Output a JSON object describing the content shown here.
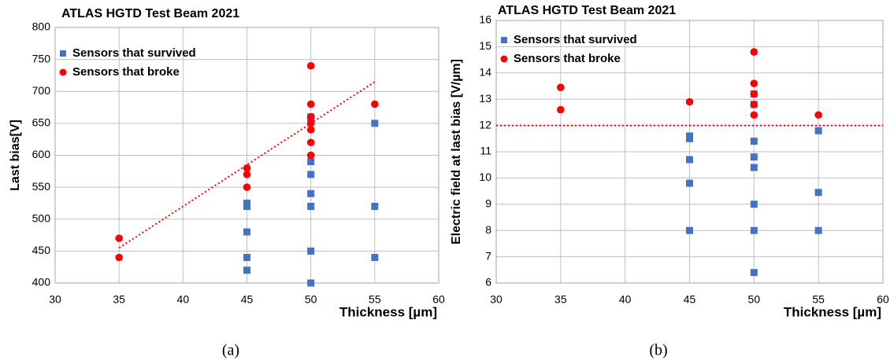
{
  "chart_data": [
    {
      "type": "scatter",
      "title": "ATLAS HGTD Test Beam 2021",
      "x_label": "Thickness [µm]",
      "y_label": "Last bias[V]",
      "caption": "(a)",
      "xlim": [
        30,
        60
      ],
      "xticks": [
        30,
        35,
        40,
        45,
        50,
        55,
        60
      ],
      "ylim": [
        400,
        800
      ],
      "yticks": [
        400,
        450,
        500,
        550,
        600,
        650,
        700,
        750,
        800
      ],
      "grid": true,
      "legend": "upper left",
      "series": [
        {
          "name": "Sensors that survived",
          "color": "#4472c4",
          "marker": "square",
          "x": [
            45,
            45,
            45,
            45,
            45,
            50,
            50,
            50,
            50,
            50,
            50,
            50,
            50,
            55,
            55,
            55
          ],
          "values": [
            525,
            520,
            480,
            440,
            420,
            660,
            655,
            590,
            570,
            540,
            520,
            450,
            400,
            650,
            520,
            440
          ]
        },
        {
          "name": "Sensors that broke",
          "color": "#ff0000",
          "marker": "circle",
          "x": [
            35,
            35,
            45,
            45,
            45,
            50,
            50,
            50,
            50,
            50,
            50,
            50,
            55
          ],
          "values": [
            470,
            440,
            580,
            570,
            550,
            740,
            680,
            660,
            650,
            640,
            620,
            600,
            680
          ]
        }
      ],
      "trendline": {
        "color": "#ff0000",
        "x": [
          35,
          55
        ],
        "values": [
          455,
          715
        ]
      }
    },
    {
      "type": "scatter",
      "title": "ATLAS HGTD Test Beam 2021",
      "x_label": "Thickness [µm]",
      "y_label": "Electric field at last bias [V/µm]",
      "caption": "(b)",
      "xlim": [
        30,
        60
      ],
      "xticks": [
        30,
        35,
        40,
        45,
        50,
        55,
        60
      ],
      "ylim": [
        6,
        16
      ],
      "yticks": [
        6,
        7,
        8,
        9,
        10,
        11,
        12,
        13,
        14,
        15,
        16
      ],
      "grid": true,
      "legend": "upper left",
      "series": [
        {
          "name": "Sensors that survived",
          "color": "#4472c4",
          "marker": "square",
          "x": [
            45,
            45,
            45,
            45,
            45,
            50,
            50,
            50,
            50,
            50,
            50,
            50,
            50,
            55,
            55,
            55
          ],
          "values": [
            11.6,
            11.5,
            10.7,
            9.8,
            8.0,
            13.2,
            12.8,
            11.4,
            10.8,
            10.4,
            9.0,
            8.0,
            6.4,
            11.8,
            9.45,
            8.0
          ]
        },
        {
          "name": "Sensors that broke",
          "color": "#ff0000",
          "marker": "circle",
          "x": [
            35,
            35,
            45,
            50,
            50,
            50,
            50,
            50,
            55
          ],
          "values": [
            13.45,
            12.6,
            12.9,
            14.8,
            13.6,
            13.2,
            12.8,
            12.4,
            12.4
          ]
        }
      ],
      "trendline": {
        "color": "#ff0000",
        "x": [
          30,
          60
        ],
        "values": [
          12,
          12
        ]
      }
    }
  ]
}
